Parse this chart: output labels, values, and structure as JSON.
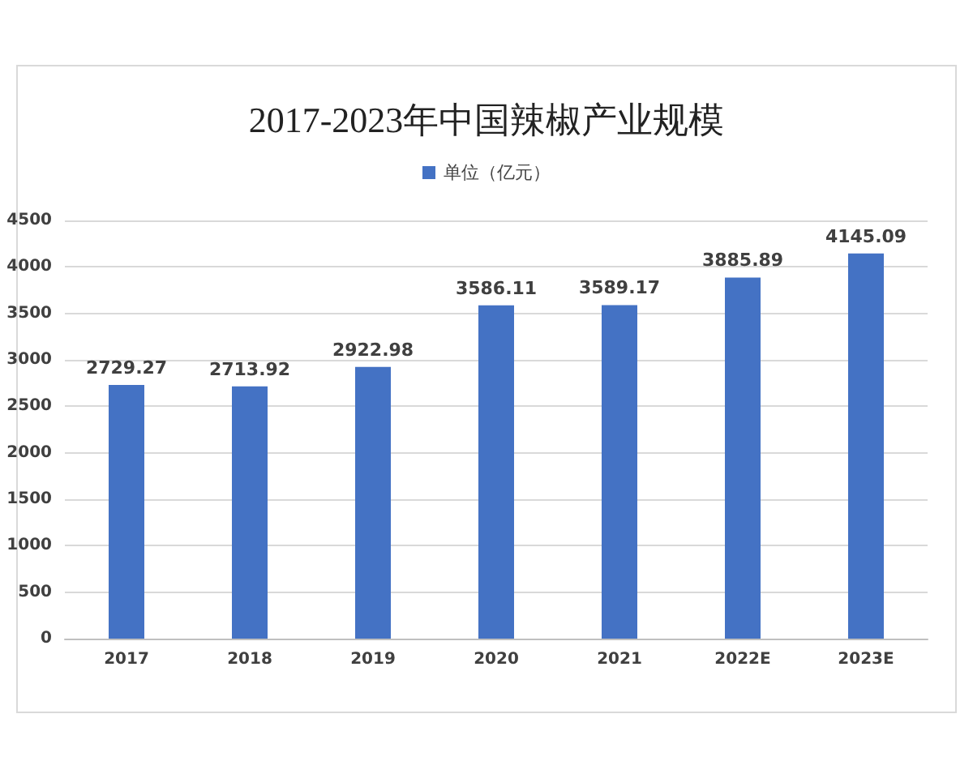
{
  "chart_data": {
    "type": "bar",
    "title": "2017-2023年中国辣椒产业规模",
    "categories": [
      "2017",
      "2018",
      "2019",
      "2020",
      "2021",
      "2022E",
      "2023E"
    ],
    "series": [
      {
        "name": "单位（亿元）",
        "color": "#4472c4",
        "values": [
          2729.27,
          2713.92,
          2922.98,
          3586.11,
          3589.17,
          3885.89,
          4145.09
        ]
      }
    ],
    "ylim": [
      0,
      4500
    ],
    "yticks": [
      0,
      500,
      1000,
      1500,
      2000,
      2500,
      3000,
      3500,
      4000,
      4500
    ],
    "grid": "y",
    "legend": "top",
    "data_labels": true
  }
}
